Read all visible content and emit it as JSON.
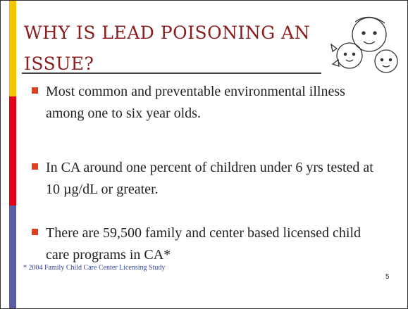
{
  "slide": {
    "title": "WHY IS LEAD POISONING AN ISSUE?",
    "bullets": [
      "Most common and preventable environmental illness among one to six year olds.",
      "In CA around one percent of children under 6 yrs tested at 10 µg/dL or greater.",
      "There are 59,500 family and center based licensed child care programs in CA*"
    ],
    "footnote": "* 2004 Family Child Care Center Licensing Study",
    "page_number": "5"
  }
}
